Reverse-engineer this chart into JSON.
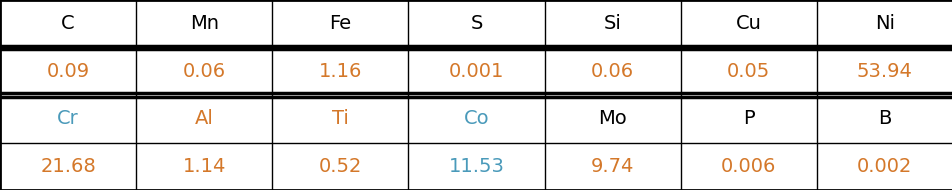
{
  "row1_headers": [
    "C",
    "Mn",
    "Fe",
    "S",
    "Si",
    "Cu",
    "Ni"
  ],
  "row1_values": [
    "0.09",
    "0.06",
    "1.16",
    "0.001",
    "0.06",
    "0.05",
    "53.94"
  ],
  "row2_headers": [
    "Cr",
    "Al",
    "Ti",
    "Co",
    "Mo",
    "P",
    "B"
  ],
  "row2_values": [
    "21.68",
    "1.14",
    "0.52",
    "11.53",
    "9.74",
    "0.006",
    "0.002"
  ],
  "row1_header_colors": [
    "#000000",
    "#000000",
    "#000000",
    "#000000",
    "#000000",
    "#000000",
    "#000000"
  ],
  "row1_value_colors": [
    "#d4782a",
    "#d4782a",
    "#d4782a",
    "#d4782a",
    "#d4782a",
    "#d4782a",
    "#d4782a"
  ],
  "row2_header_colors": [
    "#4a9aba",
    "#d4782a",
    "#d4782a",
    "#4a9aba",
    "#000000",
    "#000000",
    "#000000"
  ],
  "row2_value_colors": [
    "#d4782a",
    "#d4782a",
    "#d4782a",
    "#4a9aba",
    "#d4782a",
    "#d4782a",
    "#d4782a"
  ],
  "background_color": "#f0f0f0",
  "table_bg": "#ffffff",
  "border_color": "#000000",
  "n_cols": 7,
  "figsize": [
    9.53,
    1.9
  ],
  "dpi": 100,
  "header_fontsize": 14,
  "value_fontsize": 14,
  "lw_outer": 2.0,
  "lw_thick": 2.5,
  "lw_thin": 1.0
}
